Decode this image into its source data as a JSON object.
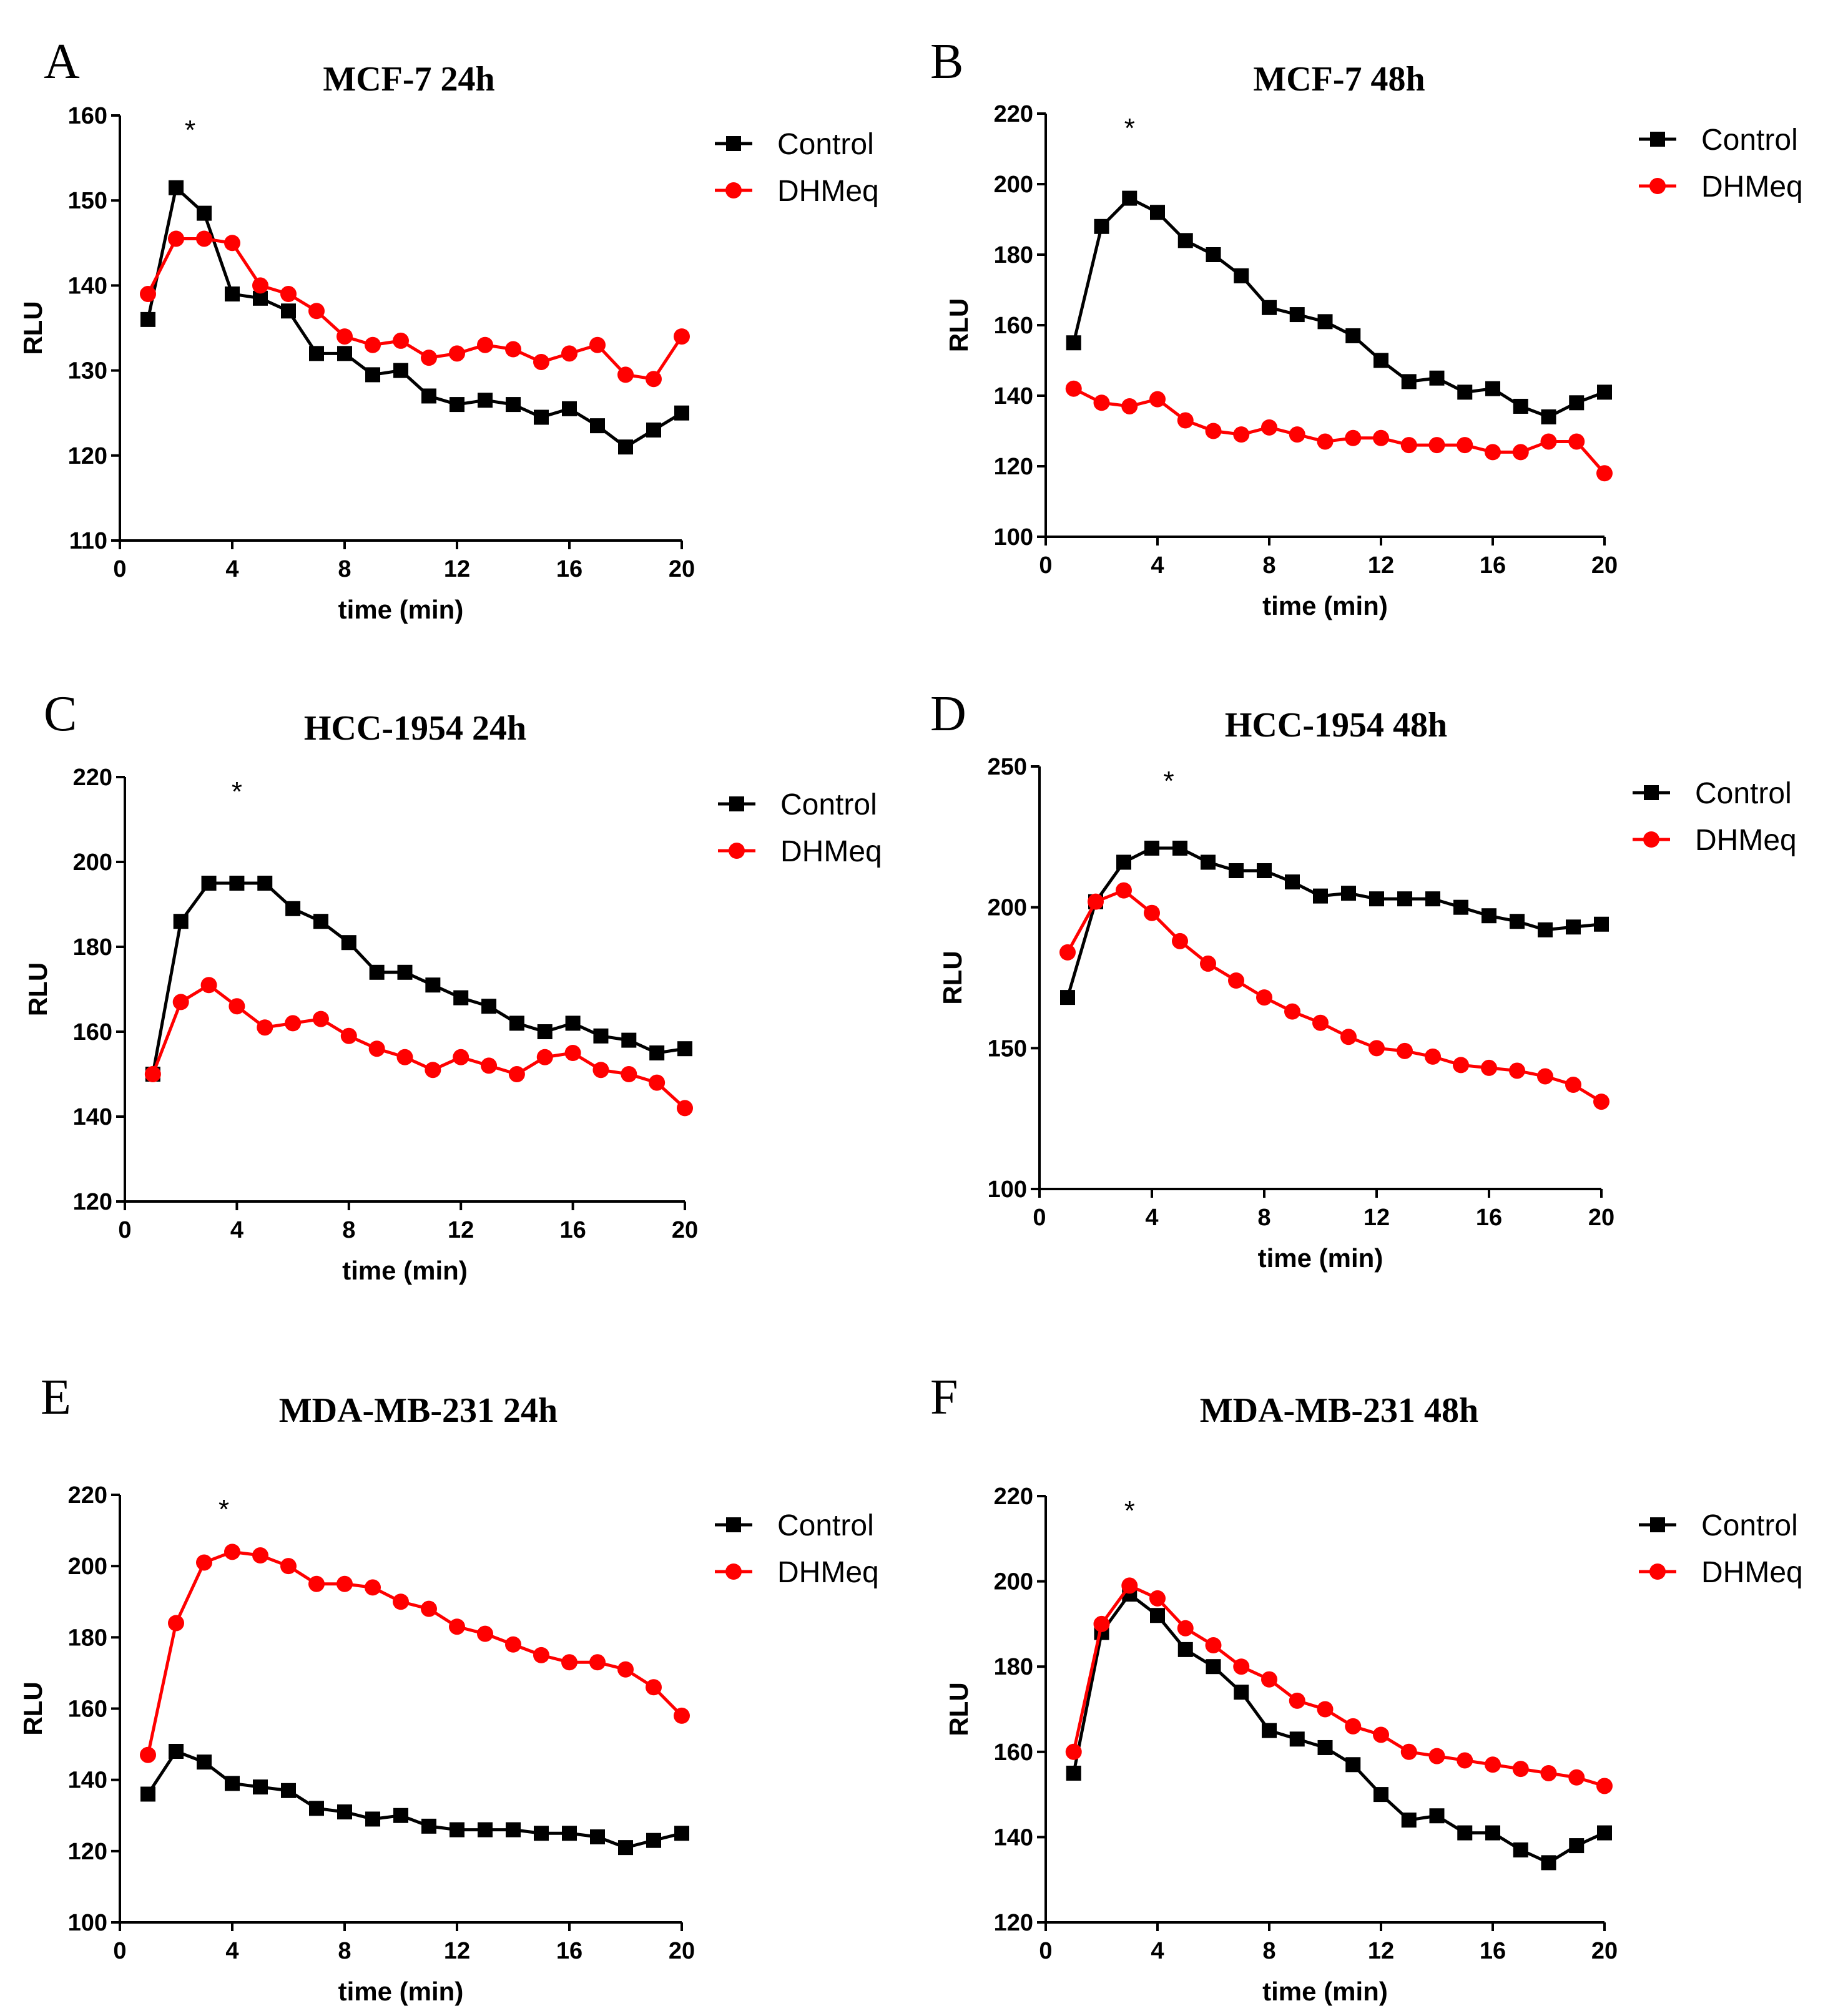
{
  "chart_data": [
    {
      "panel": "A",
      "type": "line",
      "title": "MCF-7 24h",
      "xlabel": "time (min)",
      "ylabel": "RLU",
      "xlim": [
        0,
        20
      ],
      "ylim": [
        110,
        160
      ],
      "xticks": [
        0,
        4,
        8,
        12,
        16,
        20
      ],
      "yticks": [
        110,
        120,
        130,
        140,
        150,
        160
      ],
      "annotation": {
        "text": "*",
        "x": 2.5
      },
      "x": [
        1,
        2,
        3,
        4,
        5,
        6,
        7,
        8,
        9,
        10,
        11,
        12,
        13,
        14,
        15,
        16,
        17,
        18,
        19,
        20
      ],
      "series": [
        {
          "name": "Control",
          "color": "#000000",
          "marker": "square",
          "values": [
            136,
            151.5,
            148.5,
            139,
            138.5,
            137,
            132,
            132,
            129.5,
            130,
            127,
            126,
            126.5,
            126,
            124.5,
            125.5,
            123.5,
            121,
            123,
            125
          ]
        },
        {
          "name": "DHMeq",
          "color": "#ff0000",
          "marker": "circle",
          "values": [
            139,
            145.5,
            145.5,
            145,
            140,
            139,
            137,
            134,
            133,
            133.5,
            131.5,
            132,
            133,
            132.5,
            131,
            132,
            133,
            129.5,
            129,
            134
          ]
        }
      ]
    },
    {
      "panel": "B",
      "type": "line",
      "title": "MCF-7 48h",
      "xlabel": "time (min)",
      "ylabel": "RLU",
      "xlim": [
        0,
        20
      ],
      "ylim": [
        100,
        220
      ],
      "xticks": [
        0,
        4,
        8,
        12,
        16,
        20
      ],
      "yticks": [
        100,
        120,
        140,
        160,
        180,
        200,
        220
      ],
      "annotation": {
        "text": "*",
        "x": 3
      },
      "x": [
        1,
        2,
        3,
        4,
        5,
        6,
        7,
        8,
        9,
        10,
        11,
        12,
        13,
        14,
        15,
        16,
        17,
        18,
        19,
        20
      ],
      "series": [
        {
          "name": "Control",
          "color": "#000000",
          "marker": "square",
          "values": [
            155,
            188,
            196,
            192,
            184,
            180,
            174,
            165,
            163,
            161,
            157,
            150,
            144,
            145,
            141,
            142,
            137,
            134,
            138,
            141
          ]
        },
        {
          "name": "DHMeq",
          "color": "#ff0000",
          "marker": "circle",
          "values": [
            142,
            138,
            137,
            139,
            133,
            130,
            129,
            131,
            129,
            127,
            128,
            128,
            126,
            126,
            126,
            124,
            124,
            127,
            127,
            118
          ]
        }
      ]
    },
    {
      "panel": "C",
      "type": "line",
      "title": "HCC-1954 24h",
      "xlabel": "time (min)",
      "ylabel": "RLU",
      "xlim": [
        0,
        20
      ],
      "ylim": [
        120,
        220
      ],
      "xticks": [
        0,
        4,
        8,
        12,
        16,
        20
      ],
      "yticks": [
        120,
        140,
        160,
        180,
        200,
        220
      ],
      "annotation": {
        "text": "*",
        "x": 4
      },
      "x": [
        1,
        2,
        3,
        4,
        5,
        6,
        7,
        8,
        9,
        10,
        11,
        12,
        13,
        14,
        15,
        16,
        17,
        18,
        19,
        20
      ],
      "series": [
        {
          "name": "Control",
          "color": "#000000",
          "marker": "square",
          "values": [
            150,
            186,
            195,
            195,
            195,
            189,
            186,
            181,
            174,
            174,
            171,
            168,
            166,
            162,
            160,
            162,
            159,
            158,
            155,
            156
          ]
        },
        {
          "name": "DHMeq",
          "color": "#ff0000",
          "marker": "circle",
          "values": [
            150,
            167,
            171,
            166,
            161,
            162,
            163,
            159,
            156,
            154,
            151,
            154,
            152,
            150,
            154,
            155,
            151,
            150,
            148,
            142
          ]
        }
      ]
    },
    {
      "panel": "D",
      "type": "line",
      "title": "HCC-1954 48h",
      "xlabel": "time (min)",
      "ylabel": "RLU",
      "xlim": [
        0,
        20
      ],
      "ylim": [
        100,
        250
      ],
      "xticks": [
        0,
        4,
        8,
        12,
        16,
        20
      ],
      "yticks": [
        100,
        150,
        200,
        250
      ],
      "annotation": {
        "text": "*",
        "x": 4.6
      },
      "x": [
        1,
        2,
        3,
        4,
        5,
        6,
        7,
        8,
        9,
        10,
        11,
        12,
        13,
        14,
        15,
        16,
        17,
        18,
        19,
        20
      ],
      "series": [
        {
          "name": "Control",
          "color": "#000000",
          "marker": "square",
          "values": [
            168,
            202,
            216,
            221,
            221,
            216,
            213,
            213,
            209,
            204,
            205,
            203,
            203,
            203,
            200,
            197,
            195,
            192,
            193,
            194
          ]
        },
        {
          "name": "DHMeq",
          "color": "#ff0000",
          "marker": "circle",
          "values": [
            184,
            202,
            206,
            198,
            188,
            180,
            174,
            168,
            163,
            159,
            154,
            150,
            149,
            147,
            144,
            143,
            142,
            140,
            137,
            131
          ]
        }
      ]
    },
    {
      "panel": "E",
      "type": "line",
      "title": "MDA-MB-231 24h",
      "xlabel": "time (min)",
      "ylabel": "RLU",
      "xlim": [
        0,
        20
      ],
      "ylim": [
        100,
        220
      ],
      "xticks": [
        0,
        4,
        8,
        12,
        16,
        20
      ],
      "yticks": [
        100,
        120,
        140,
        160,
        180,
        200,
        220
      ],
      "annotation": {
        "text": "*",
        "x": 3.7
      },
      "x": [
        1,
        2,
        3,
        4,
        5,
        6,
        7,
        8,
        9,
        10,
        11,
        12,
        13,
        14,
        15,
        16,
        17,
        18,
        19,
        20
      ],
      "series": [
        {
          "name": "Control",
          "color": "#000000",
          "marker": "square",
          "values": [
            136,
            148,
            145,
            139,
            138,
            137,
            132,
            131,
            129,
            130,
            127,
            126,
            126,
            126,
            125,
            125,
            124,
            121,
            123,
            125
          ]
        },
        {
          "name": "DHMeq",
          "color": "#ff0000",
          "marker": "circle",
          "values": [
            147,
            184,
            201,
            204,
            203,
            200,
            195,
            195,
            194,
            190,
            188,
            183,
            181,
            178,
            175,
            173,
            173,
            171,
            166,
            158
          ]
        }
      ]
    },
    {
      "panel": "F",
      "type": "line",
      "title": "MDA-MB-231 48h",
      "xlabel": "time (min)",
      "ylabel": "RLU",
      "xlim": [
        0,
        20
      ],
      "ylim": [
        120,
        220
      ],
      "xticks": [
        0,
        4,
        8,
        12,
        16,
        20
      ],
      "yticks": [
        120,
        140,
        160,
        180,
        200,
        220
      ],
      "annotation": {
        "text": "*",
        "x": 3
      },
      "x": [
        1,
        2,
        3,
        4,
        5,
        6,
        7,
        8,
        9,
        10,
        11,
        12,
        13,
        14,
        15,
        16,
        17,
        18,
        19,
        20
      ],
      "series": [
        {
          "name": "Control",
          "color": "#000000",
          "marker": "square",
          "values": [
            155,
            188,
            197,
            192,
            184,
            180,
            174,
            165,
            163,
            161,
            157,
            150,
            144,
            145,
            141,
            141,
            137,
            134,
            138,
            141
          ]
        },
        {
          "name": "DHMeq",
          "color": "#ff0000",
          "marker": "circle",
          "values": [
            160,
            190,
            199,
            196,
            189,
            185,
            180,
            177,
            172,
            170,
            166,
            164,
            160,
            159,
            158,
            157,
            156,
            155,
            154,
            152
          ]
        }
      ]
    }
  ]
}
